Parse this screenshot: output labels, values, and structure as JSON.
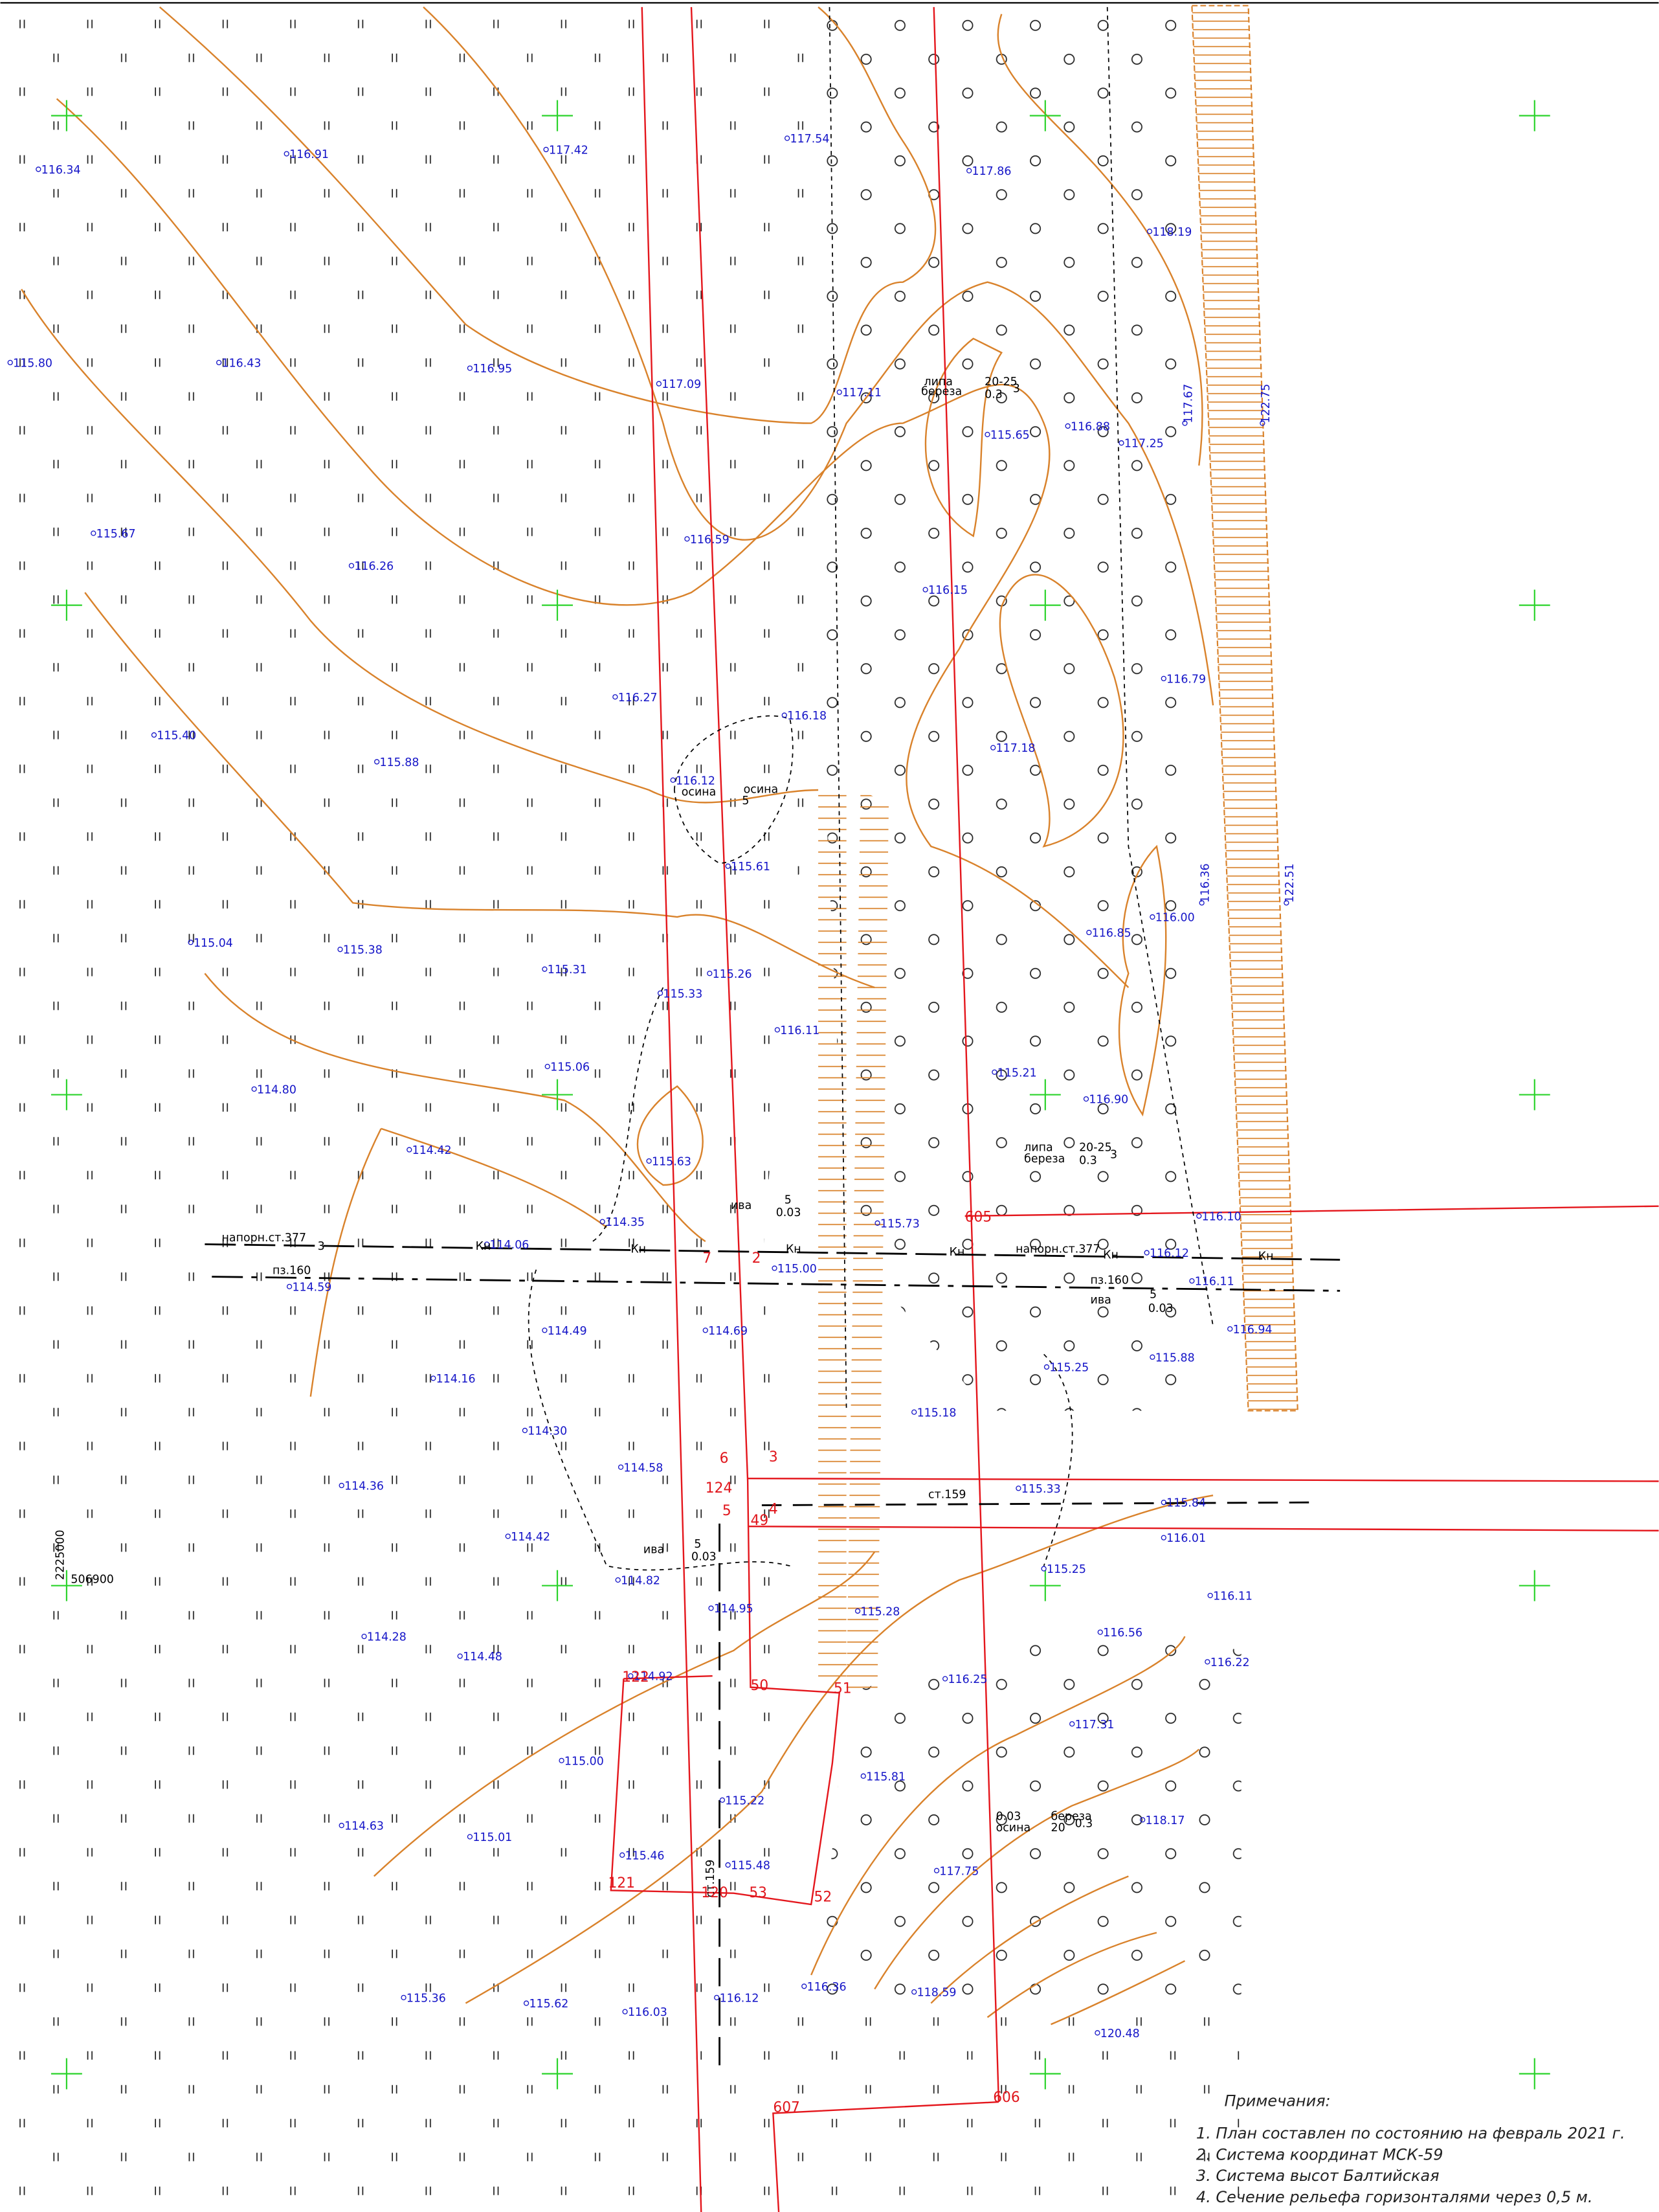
{
  "spot_heights": [
    "116.34",
    "116.91",
    "117.42",
    "117.54",
    "117.86",
    "118.19",
    "115.80",
    "116.43",
    "116.95",
    "117.09",
    "117.11",
    "115.65",
    "116.88",
    "117.25",
    "117.67",
    "122.75",
    "115.67",
    "116.59",
    "116.26",
    "116.15",
    "116.79",
    "116.27",
    "116.18",
    "115.40",
    "115.88",
    "117.18",
    "116.12",
    "115.61",
    "116.00",
    "116.85",
    "115.04",
    "115.38",
    "115.31",
    "115.26",
    "115.33",
    "116.11",
    "115.21",
    "115.06",
    "114.80",
    "116.90",
    "114.42",
    "115.63",
    "115.73",
    "114.35",
    "114.06",
    "115.00",
    "114.59",
    "116.12",
    "116.11",
    "116.94",
    "114.49",
    "114.69",
    "115.88",
    "115.25",
    "114.16",
    "115.18",
    "114.30",
    "114.58",
    "114.36",
    "115.33",
    "115.84",
    "116.01",
    "114.42",
    "114.82",
    "115.25",
    "116.11",
    "114.95",
    "115.28",
    "114.28",
    "116.56",
    "114.48",
    "116.22",
    "114.92",
    "116.25",
    "117.31",
    "115.00",
    "115.81",
    "115.22",
    "118.17",
    "114.63",
    "115.01",
    "115.46",
    "115.48",
    "117.75",
    "115.36",
    "115.62",
    "116.03",
    "116.12",
    "116.36",
    "118.59",
    "120.48",
    "122.51",
    "116.36",
    "116.10"
  ],
  "labels": [
    "напорн.ст.377",
    "пз.160",
    "напорн.ст.377",
    "пз.160",
    "ст.159",
    "ст.159",
    "осина",
    "липа",
    "береза",
    "20-25",
    "0.3",
    "3",
    "липа",
    "береза",
    "20-25",
    "0.3",
    "3",
    "ива",
    "5",
    "0.03",
    "ива",
    "5",
    "0.03",
    "ива",
    "5",
    "0.03",
    "осина",
    "5",
    "0.03",
    "осина",
    "береза",
    "20",
    "0.3",
    "3",
    "Кн",
    "Кн",
    "Кн",
    "Кн",
    "Кн",
    "Кн",
    "Кн"
  ],
  "parcel_points": [
    "7",
    "2",
    "6",
    "3",
    "4",
    "5",
    "49",
    "124",
    "50",
    "51",
    "52",
    "53",
    "120",
    "121",
    "122",
    "605",
    "606",
    "607"
  ],
  "grid_coordinates": {
    "y": "2225000",
    "x": "506900"
  },
  "notes": {
    "title": "Примечания:",
    "items": [
      "1. План составлен по состоянию на февраль 2021 г.",
      "2. Система координат МСК-59",
      "3. Система высот Балтийская",
      "4. Сечение рельефа горизонталями через 0,5 м."
    ]
  }
}
